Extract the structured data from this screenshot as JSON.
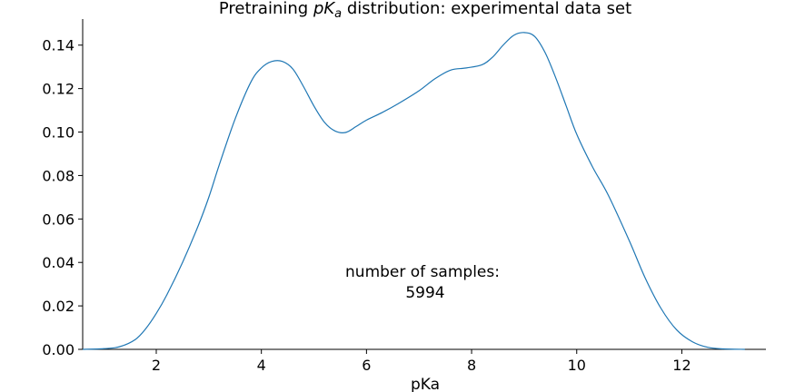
{
  "chart_data": {
    "type": "line",
    "title": {
      "prefix": "Pretraining ",
      "math_main": "pK",
      "math_sub": "a",
      "suffix": " distribution: experimental data set"
    },
    "xlabel": "pKa",
    "ylabel": "",
    "xlim": [
      0.6,
      13.6
    ],
    "ylim": [
      0.0,
      0.152
    ],
    "xticks": [
      2,
      4,
      6,
      8,
      10,
      12
    ],
    "xtick_labels": [
      "2",
      "4",
      "6",
      "8",
      "10",
      "12"
    ],
    "yticks": [
      0.0,
      0.02,
      0.04,
      0.06,
      0.08,
      0.1,
      0.12,
      0.14
    ],
    "ytick_labels": [
      "0.00",
      "0.02",
      "0.04",
      "0.06",
      "0.08",
      "0.10",
      "0.12",
      "0.14"
    ],
    "grid": false,
    "line_color": "#1f77b4",
    "annotation": {
      "line1": "number of samples:",
      "line2": "5994"
    },
    "series": [
      {
        "x": [
          0.6,
          1.0,
          1.3,
          1.6,
          1.8,
          2.0,
          2.2,
          2.5,
          2.8,
          3.0,
          3.2,
          3.5,
          3.8,
          4.0,
          4.2,
          4.4,
          4.6,
          4.8,
          5.0,
          5.2,
          5.4,
          5.6,
          5.8,
          6.0,
          6.3,
          6.6,
          7.0,
          7.3,
          7.6,
          7.9,
          8.2,
          8.4,
          8.6,
          8.8,
          9.0,
          9.2,
          9.4,
          9.6,
          9.8,
          10.0,
          10.3,
          10.6,
          11.0,
          11.3,
          11.6,
          11.9,
          12.2,
          12.5,
          12.8,
          13.2
        ],
        "y": [
          0.0,
          0.0003,
          0.0012,
          0.0045,
          0.0095,
          0.0165,
          0.025,
          0.04,
          0.057,
          0.07,
          0.085,
          0.106,
          0.123,
          0.1295,
          0.1325,
          0.1325,
          0.129,
          0.121,
          0.112,
          0.1045,
          0.1005,
          0.0998,
          0.1025,
          0.1055,
          0.109,
          0.113,
          0.119,
          0.1245,
          0.1285,
          0.1295,
          0.131,
          0.1345,
          0.14,
          0.1445,
          0.1458,
          0.144,
          0.1365,
          0.125,
          0.112,
          0.099,
          0.084,
          0.071,
          0.05,
          0.033,
          0.019,
          0.009,
          0.0035,
          0.0009,
          0.0002,
          0.0
        ]
      }
    ]
  }
}
